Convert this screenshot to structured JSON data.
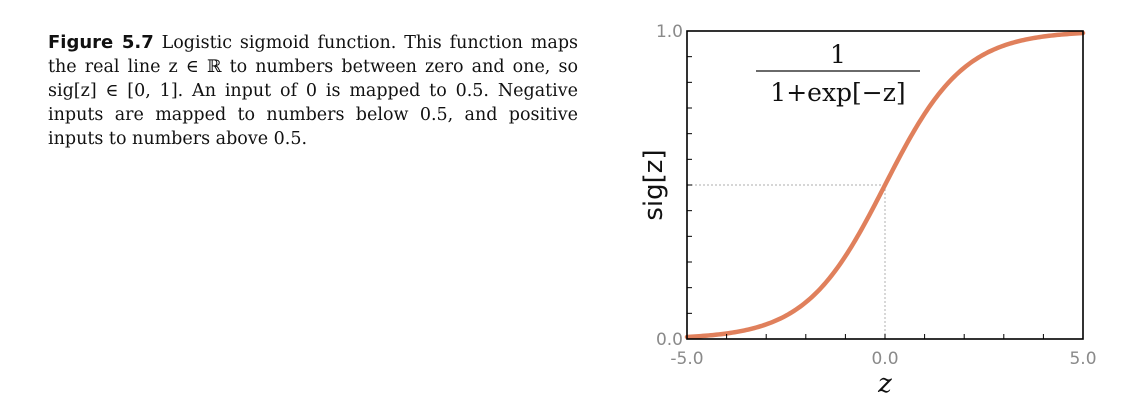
{
  "caption": {
    "label": "Figure 5.7",
    "text": " Logistic sigmoid function. This function maps the real line z ∈ ℝ to numbers between zero and one, so sig[z] ∈ [0, 1]. An input of 0 is mapped to 0.5. Negative inputs are mapped to numbers below 0.5, and positive inputs to numbers above 0.5."
  },
  "chart_data": {
    "type": "line",
    "title": "",
    "xlabel": "z",
    "ylabel": "sig[z]",
    "xlim": [
      -5.0,
      5.0
    ],
    "ylim": [
      0.0,
      1.0
    ],
    "x_tick_labels": [
      "-5.0",
      "0.0",
      "5.0"
    ],
    "y_tick_labels": [
      "0.0",
      "1.0"
    ],
    "grid": false,
    "annotation": {
      "numerator": "1",
      "denominator": "1+exp[−z]"
    },
    "reference_point": {
      "x": 0.0,
      "y": 0.5
    },
    "series": [
      {
        "color": "#e0805c",
        "x": [
          -5.0,
          -4.5,
          -4.0,
          -3.5,
          -3.0,
          -2.5,
          -2.0,
          -1.5,
          -1.0,
          -0.5,
          0.0,
          0.5,
          1.0,
          1.5,
          2.0,
          2.5,
          3.0,
          3.5,
          4.0,
          4.5,
          5.0
        ],
        "y": [
          0.0067,
          0.011,
          0.018,
          0.029,
          0.047,
          0.076,
          0.119,
          0.182,
          0.269,
          0.378,
          0.5,
          0.622,
          0.731,
          0.818,
          0.881,
          0.924,
          0.953,
          0.971,
          0.982,
          0.989,
          0.9933
        ]
      }
    ],
    "colors": {
      "curve": "#e0805c",
      "axes": "#000000",
      "ticks_text": "#8a8a8a",
      "guides": "#bdbdbd"
    }
  }
}
